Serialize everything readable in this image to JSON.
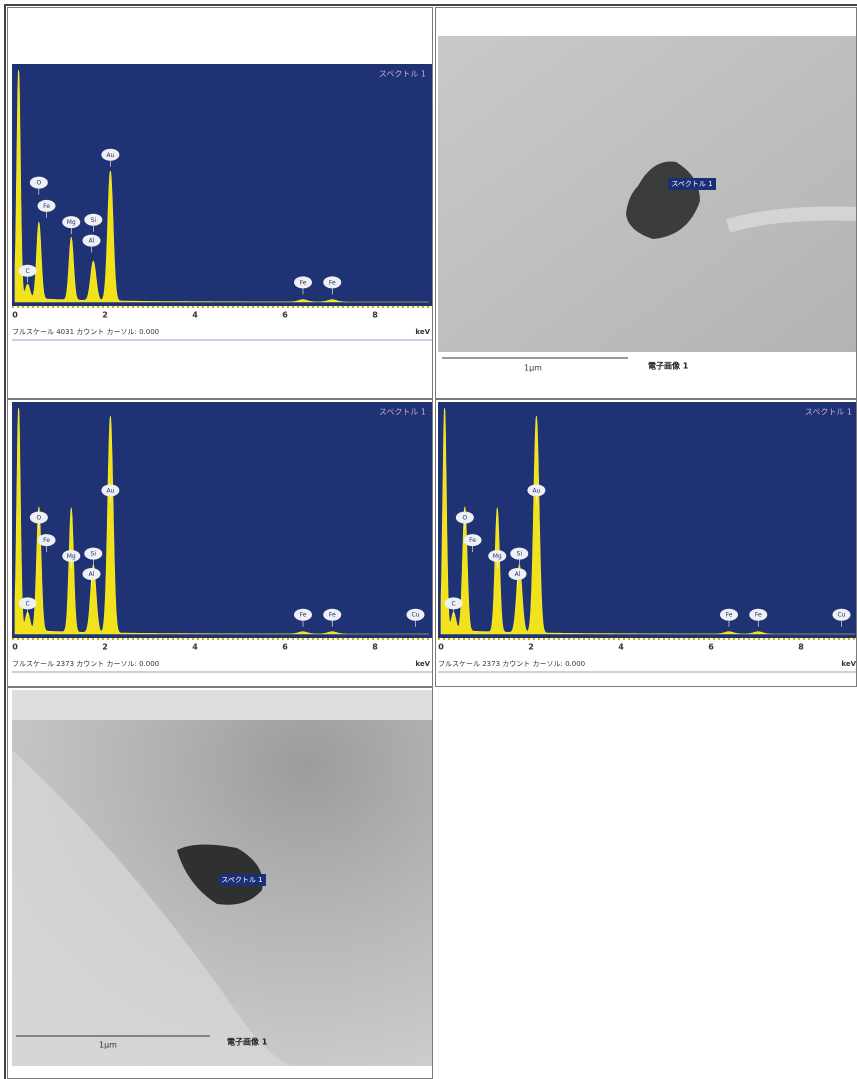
{
  "spectra": [
    {
      "title": "スペクトル 1",
      "peak_labels": [
        "C",
        "O",
        "Fe",
        "Mg",
        "Si",
        "Al",
        "Au",
        "Fe",
        "Fe"
      ],
      "ticks": [
        "0",
        "2",
        "4",
        "6",
        "8"
      ],
      "unit": "keV",
      "footer": "フルスケール 4031 カウント カーソル: 0.000"
    },
    {
      "title": "スペクトル 1",
      "peak_labels": [
        "C",
        "O",
        "Fe",
        "Mg",
        "Si",
        "Al",
        "Au",
        "Fe",
        "Fe",
        "Cu"
      ],
      "ticks": [
        "0",
        "2",
        "4",
        "6",
        "8"
      ],
      "unit": "keV",
      "footer": "フルスケール 2373 カウント カーソル: 0.000"
    },
    {
      "title": "スペクトル 1",
      "peak_labels": [
        "C",
        "O",
        "Fe",
        "Mg",
        "Si",
        "Al",
        "Au",
        "Fe",
        "Fe",
        "Cu"
      ],
      "ticks": [
        "0",
        "2",
        "4",
        "6",
        "8"
      ],
      "unit": "keV",
      "footer": "フルスケール 2373 カウント カーソル: 0.000"
    }
  ],
  "images": [
    {
      "label": "スペクトル 1",
      "scale": "1μm",
      "caption": "電子画像 1"
    },
    {
      "label": "スペクトル 1",
      "scale": "1μm",
      "caption": "電子画像 1"
    }
  ]
}
